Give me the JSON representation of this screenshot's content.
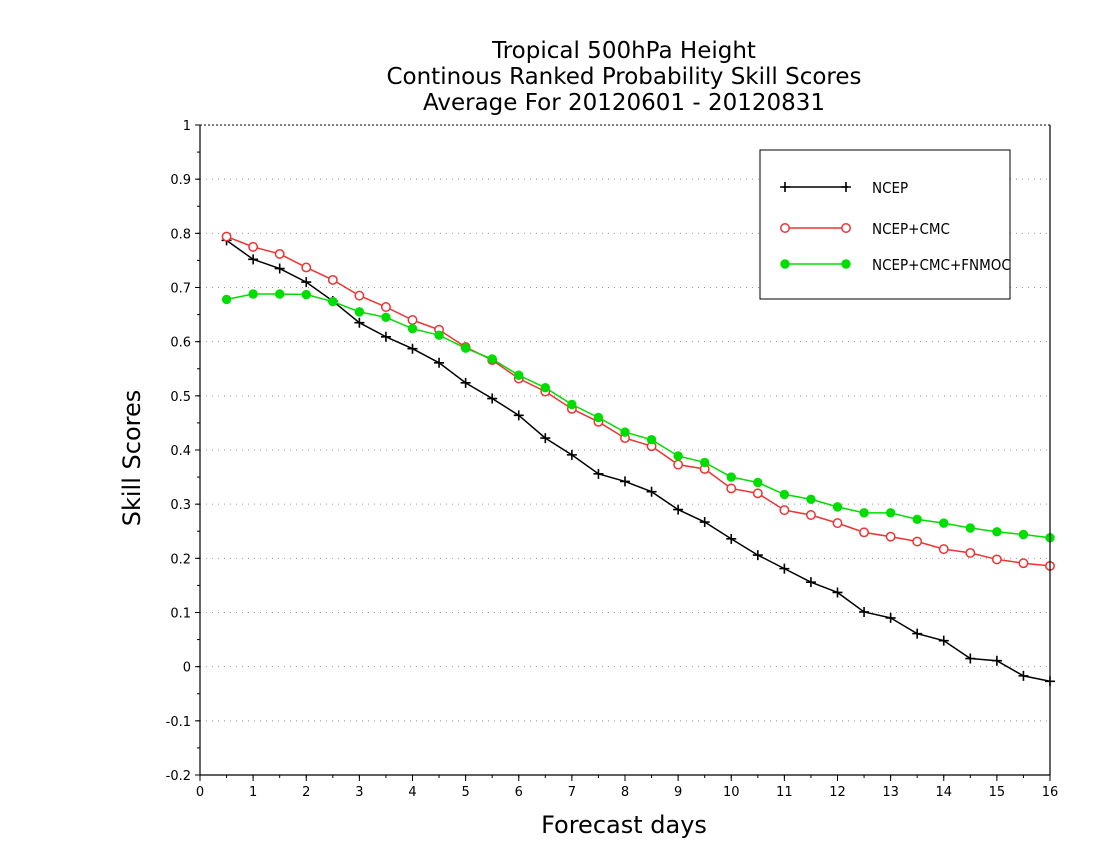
{
  "chart_data": {
    "type": "line",
    "title": [
      "Tropical 500hPa Height",
      "Continous Ranked Probability Skill Scores",
      "Average For 20120601 - 20120831"
    ],
    "xlabel": "Forecast days",
    "ylabel": "Skill Scores",
    "xlim": [
      0,
      16
    ],
    "ylim": [
      -0.2,
      1
    ],
    "xticks": [
      "0",
      "1",
      "2",
      "3",
      "4",
      "5",
      "6",
      "7",
      "8",
      "9",
      "10",
      "11",
      "12",
      "13",
      "14",
      "15",
      "16"
    ],
    "yticks": [
      "-0.2",
      "-0.1",
      "0",
      "0.1",
      "0.2",
      "0.3",
      "0.4",
      "0.5",
      "0.6",
      "0.7",
      "0.8",
      "0.9",
      "1"
    ],
    "grid": "horizontal-dotted",
    "legend_position": "top-right",
    "x": [
      0.5,
      1,
      1.5,
      2,
      2.5,
      3,
      3.5,
      4,
      4.5,
      5,
      5.5,
      6,
      6.5,
      7,
      7.5,
      8,
      8.5,
      9,
      9.5,
      10,
      10.5,
      11,
      11.5,
      12,
      12.5,
      13,
      13.5,
      14,
      14.5,
      15,
      15.5,
      16
    ],
    "series": [
      {
        "name": "NCEP",
        "color": "#000000",
        "marker": "plus",
        "values": [
          0.787,
          0.752,
          0.735,
          0.71,
          0.675,
          0.635,
          0.609,
          0.587,
          0.561,
          0.524,
          0.495,
          0.464,
          0.422,
          0.391,
          0.356,
          0.342,
          0.323,
          0.29,
          0.267,
          0.236,
          0.206,
          0.181,
          0.156,
          0.137,
          0.101,
          0.09,
          0.061,
          0.048,
          0.015,
          0.011,
          -0.017,
          -0.027
        ]
      },
      {
        "name": "NCEP+CMC",
        "color": "#ee3333",
        "marker": "circle-open",
        "values": [
          0.794,
          0.775,
          0.762,
          0.737,
          0.714,
          0.685,
          0.664,
          0.64,
          0.622,
          0.59,
          0.566,
          0.532,
          0.508,
          0.476,
          0.452,
          0.422,
          0.407,
          0.373,
          0.365,
          0.329,
          0.32,
          0.289,
          0.28,
          0.265,
          0.248,
          0.24,
          0.231,
          0.217,
          0.21,
          0.198,
          0.191,
          0.186
        ]
      },
      {
        "name": "NCEP+CMC+FNMOC",
        "color": "#00dd00",
        "marker": "circle-filled",
        "values": [
          0.678,
          0.688,
          0.688,
          0.687,
          0.674,
          0.655,
          0.645,
          0.624,
          0.612,
          0.588,
          0.568,
          0.538,
          0.515,
          0.484,
          0.46,
          0.433,
          0.419,
          0.389,
          0.377,
          0.35,
          0.34,
          0.318,
          0.309,
          0.295,
          0.284,
          0.284,
          0.272,
          0.265,
          0.256,
          0.249,
          0.244,
          0.238
        ]
      }
    ]
  }
}
